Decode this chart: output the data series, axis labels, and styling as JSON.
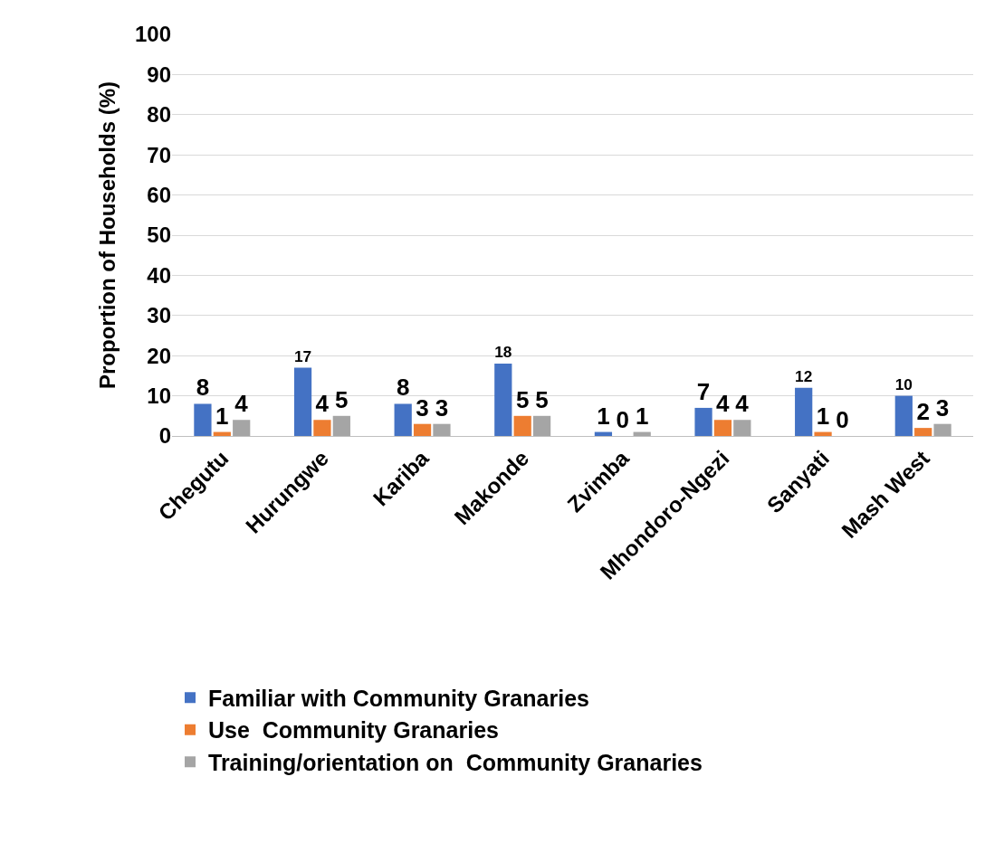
{
  "chart_data": {
    "type": "bar",
    "ylabel": "Proportion of Households (%)",
    "categories": [
      "Chegutu",
      "Hurungwe",
      "Kariba",
      "Makonde",
      "Zvimba",
      "Mhondoro-Ngezi",
      "Sanyati",
      "Mash West"
    ],
    "series": [
      {
        "name": "Familiar with Community Granaries",
        "color": "#4472c4",
        "values": [
          8,
          17,
          8,
          18,
          1,
          7,
          12,
          10
        ]
      },
      {
        "name": "Use  Community Granaries",
        "color": "#ed7d31",
        "values": [
          1,
          4,
          3,
          5,
          0,
          4,
          1,
          2
        ]
      },
      {
        "name": "Training/orientation on  Community Granaries",
        "color": "#a5a5a5",
        "values": [
          4,
          5,
          3,
          5,
          1,
          4,
          0,
          3
        ]
      }
    ],
    "ylim": [
      0,
      100
    ],
    "yticks": [
      0,
      10,
      20,
      30,
      40,
      50,
      60,
      70,
      80,
      90,
      100
    ],
    "grid": "y",
    "legend": "bottom",
    "data_labels": true
  }
}
